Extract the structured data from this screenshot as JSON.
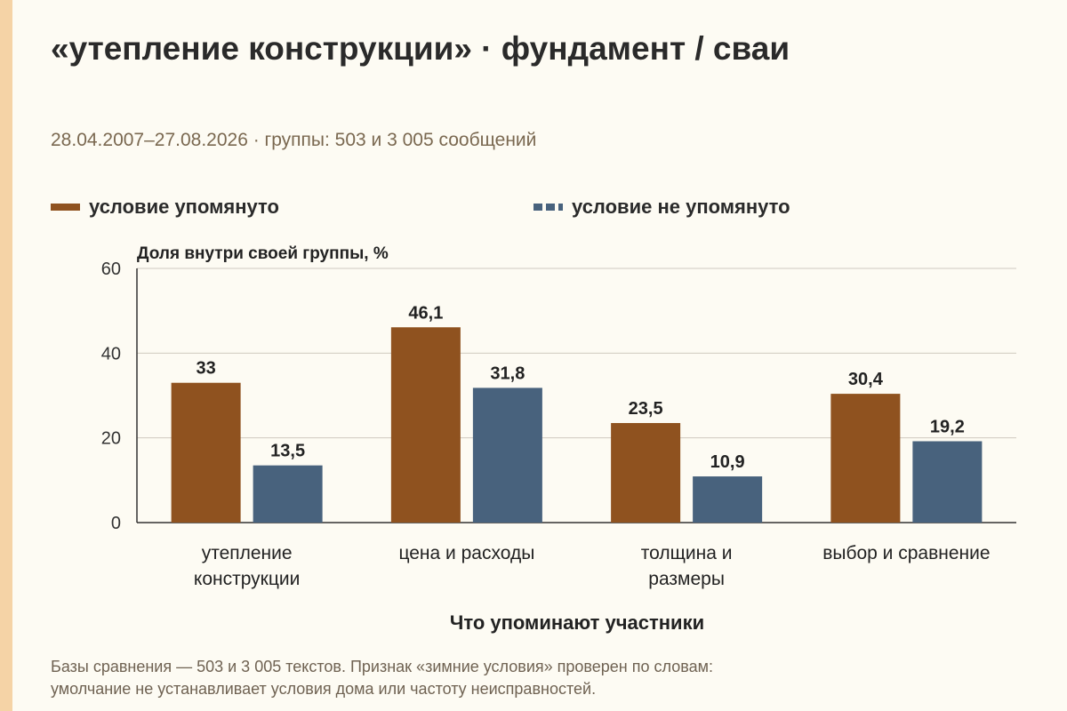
{
  "title": "«утепление конструкции» · фундамент / сваи",
  "subtitle": "28.04.2007–27.08.2026 · группы: 503 и 3 005 сообщений",
  "colors": {
    "background": "#fdfbf3",
    "accent_strip": "#f5d3a6",
    "series_mentioned": "#8f521f",
    "series_not_mentioned": "#48627d",
    "grid": "#cfcac0",
    "axis": "#333333"
  },
  "chart_data": {
    "type": "bar",
    "title": "",
    "ylabel": "Доля внутри своей группы, %",
    "xlabel": "Что упоминают участники",
    "ylim": [
      0,
      60
    ],
    "yticks": [
      0,
      20,
      40,
      60
    ],
    "grid": true,
    "legend_position": "top-left",
    "categories": [
      [
        "утепление",
        "конструкции"
      ],
      [
        "цена и расходы"
      ],
      [
        "толщина и",
        "размеры"
      ],
      [
        "выбор и сравнение"
      ]
    ],
    "series": [
      {
        "name": "условие упомянуто",
        "values": [
          33,
          46.1,
          23.5,
          30.4
        ],
        "labels": [
          "33",
          "46,1",
          "23,5",
          "30,4"
        ],
        "color": "#8f521f"
      },
      {
        "name": "условие не упомянуто",
        "values": [
          13.5,
          31.8,
          10.9,
          19.2
        ],
        "labels": [
          "13,5",
          "31,8",
          "10,9",
          "19,2"
        ],
        "color": "#48627d"
      }
    ]
  },
  "note": {
    "line1": "Базы сравнения — 503 и 3 005 текстов. Признак «зимние условия» проверен по словам:",
    "line2": "умолчание не устанавливает условия дома или частоту неисправностей."
  }
}
